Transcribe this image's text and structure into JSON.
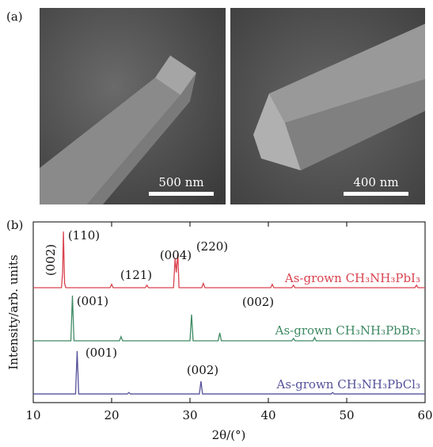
{
  "panel_a": {
    "label": "(a)",
    "scale_bars": [
      "500 nm",
      "400 nm"
    ]
  },
  "chart_data": {
    "type": "line",
    "panel_label": "(b)",
    "xlabel": "2θ/(°)",
    "ylabel": "Intensity/arb. units",
    "xlim": [
      10,
      60
    ],
    "xticks": [
      10,
      20,
      30,
      40,
      50,
      60
    ],
    "ylim": [
      0,
      100
    ],
    "series": [
      {
        "name": "As-grown CH₃NH₃PbI₃",
        "color": "#d9434f",
        "x": [
          10,
          13.6,
          13.75,
          13.85,
          14.0,
          14.15,
          19.8,
          20.0,
          20.2,
          24.3,
          24.5,
          24.7,
          27.9,
          28.1,
          28.25,
          28.45,
          28.6,
          31.5,
          31.7,
          31.9,
          40.3,
          40.5,
          40.7,
          43.0,
          43.2,
          43.4,
          58.7,
          58.9,
          59.1,
          60
        ],
        "values": [
          63.6,
          63.6,
          72,
          94.7,
          66,
          63.6,
          63.6,
          65.5,
          63.6,
          63.6,
          65,
          63.6,
          63.6,
          80,
          72,
          82.5,
          63.6,
          63.6,
          66,
          63.6,
          63.6,
          65.5,
          63.6,
          63.6,
          65,
          63.6,
          63.6,
          65,
          63.6,
          63.6
        ],
        "annotations": [
          "(002)",
          "(110)",
          "(121)",
          "(004)",
          "(220)"
        ]
      },
      {
        "name": "As-grown CH₃NH₃PbBr₃",
        "color": "#3f8a64",
        "x": [
          10,
          14.8,
          15.0,
          15.2,
          21.0,
          21.2,
          21.4,
          30.0,
          30.2,
          30.4,
          33.6,
          33.8,
          34.0,
          43.0,
          43.2,
          43.4,
          45.7,
          45.9,
          46.1,
          60
        ],
        "values": [
          34.2,
          34.2,
          59.2,
          34.2,
          34.2,
          36.5,
          34.2,
          34.2,
          48.7,
          34.2,
          34.2,
          38.6,
          34.2,
          34.2,
          35.5,
          34.2,
          34.2,
          36,
          34.2,
          34.2
        ],
        "annotations": [
          "(001)",
          "(002)"
        ]
      },
      {
        "name": "As-grown CH₃NH₃PbCl₃",
        "color": "#55519a",
        "x": [
          10,
          15.4,
          15.6,
          15.8,
          22.0,
          22.2,
          22.4,
          31.2,
          31.4,
          31.6,
          48.0,
          48.2,
          48.4,
          60
        ],
        "values": [
          4.8,
          4.8,
          28.5,
          4.8,
          4.8,
          5.6,
          4.8,
          4.8,
          11.8,
          4.8,
          4.8,
          5.6,
          4.8,
          4.8
        ],
        "annotations": [
          "(001)",
          "(002)"
        ]
      }
    ]
  }
}
